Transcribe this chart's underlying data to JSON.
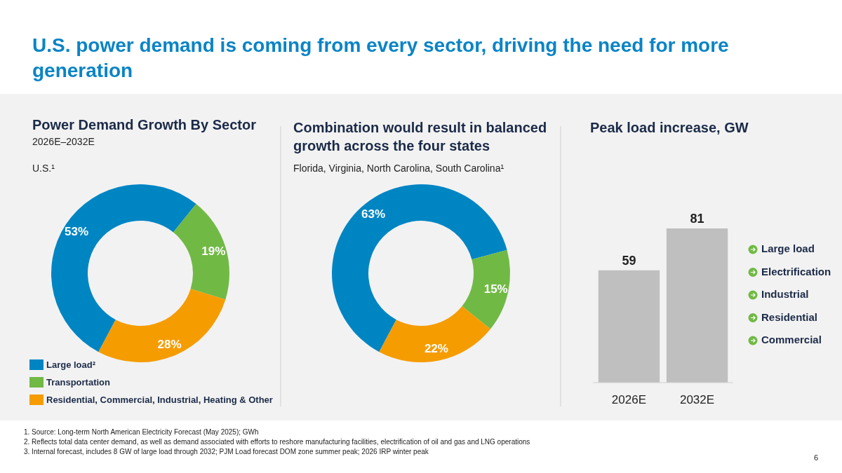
{
  "chart_data": [
    {
      "type": "other",
      "title": "U.S. power demand is coming from every sector, driving the need for more generation",
      "annotations": [
        "1. Source: Long-term North American Electricity Forecast (May 2025); GWh",
        "2. Reflects total data center demand, as well as demand associated with efforts to reshore manufacturing facilities, electrification of oil and gas and LNG operations",
        "3. Internal forecast, includes 8 GW of large load through 2032; PJM Load forecast DOM zone summer peak; 2026 IRP winter peak",
        "6"
      ]
    },
    {
      "type": "donut",
      "title": "Power Demand Growth By Sector",
      "subtitle": "2026E–2032E",
      "annotations": [
        "U.S.¹"
      ],
      "categories": [
        "Large load²",
        "Transportation",
        "Residential, Commercial, Industrial, Heating & Other"
      ],
      "values": [
        53,
        19,
        28
      ],
      "value_labels": [
        "53%",
        "19%",
        "28%"
      ],
      "colors": [
        "#0085c3",
        "#71b945",
        "#f59c00"
      ],
      "legend": "bottom"
    },
    {
      "type": "donut",
      "title": "Combination would result in balanced growth across the four states",
      "subtitle": "Florida, Virginia, North Carolina, South Carolina¹",
      "categories": [
        null,
        null,
        null
      ],
      "values": [
        63,
        15,
        22
      ],
      "value_labels": [
        "63%",
        "15%",
        "22%"
      ],
      "colors": [
        "#0085c3",
        "#71b945",
        "#f59c00"
      ]
    },
    {
      "type": "bar",
      "title": "Peak load increase, GW",
      "categories": [
        "2026E",
        "2032E"
      ],
      "values": [
        59,
        81
      ],
      "color": "#bfbfbf",
      "data_labels": true,
      "annotations": [
        "Large load",
        "Electrification",
        "Industrial",
        "Residential",
        "Commercial"
      ]
    }
  ]
}
